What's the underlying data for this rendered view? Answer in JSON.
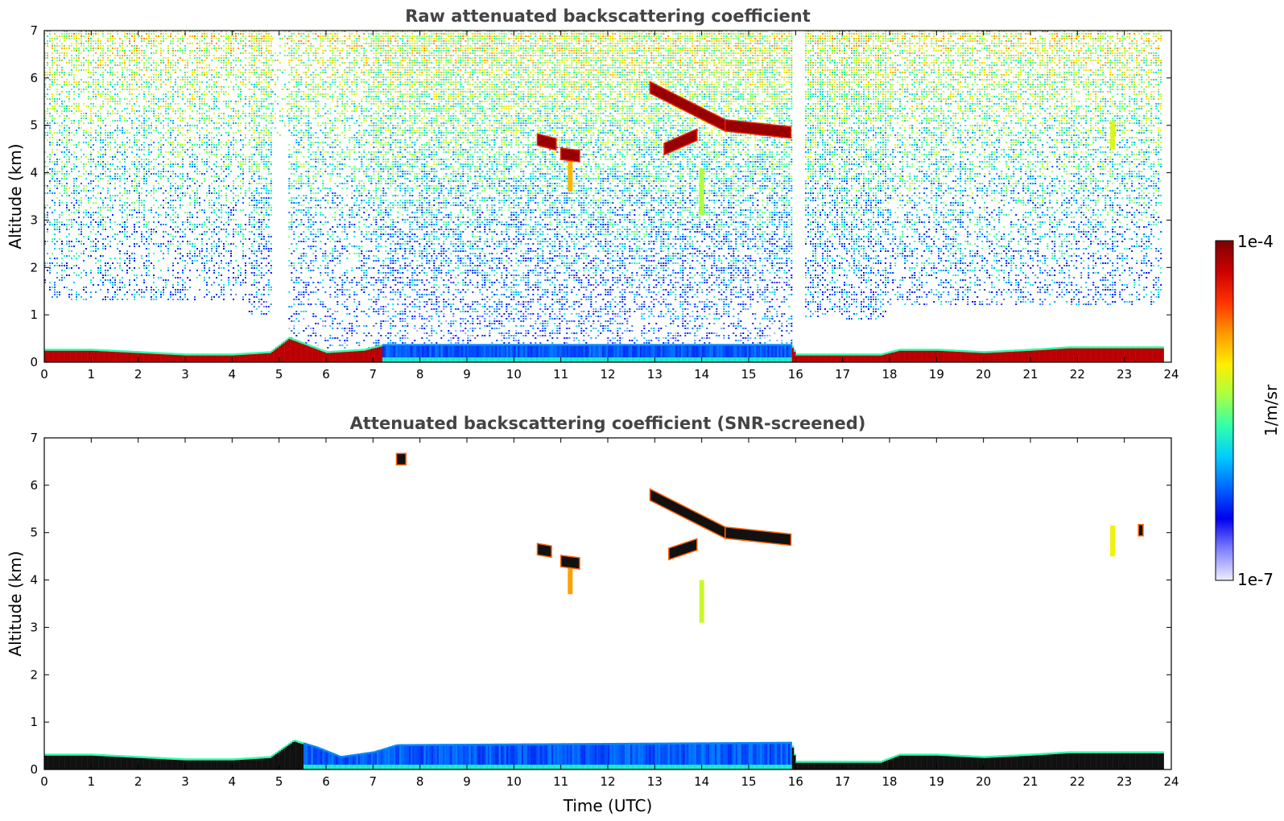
{
  "chart_data": [
    {
      "type": "heatmap",
      "title": "Raw attenuated backscattering coefficient",
      "xlabel": "",
      "ylabel": "Altitude (km)",
      "xlim": [
        0,
        24
      ],
      "ylim": [
        0,
        7
      ],
      "xticks": [
        "0",
        "1",
        "2",
        "3",
        "4",
        "5",
        "6",
        "7",
        "8",
        "9",
        "10",
        "11",
        "12",
        "13",
        "14",
        "15",
        "16",
        "17",
        "18",
        "19",
        "20",
        "21",
        "22",
        "23",
        "24"
      ],
      "yticks": [
        "0",
        "1",
        "2",
        "3",
        "4",
        "5",
        "6",
        "7"
      ],
      "colorscale": "jet, logarithmic",
      "noise_regions": [
        {
          "t0": 0,
          "t1": 4.3,
          "hmin": 1.3,
          "density": 0.55
        },
        {
          "t0": 4.35,
          "t1": 4.85,
          "hmin": 1.0,
          "density": 0.75
        },
        {
          "t0": 4.85,
          "t1": 5.2,
          "hmin": 4.8,
          "density": 0.25
        },
        {
          "t0": 5.2,
          "t1": 7.0,
          "hmin": 0.3,
          "density": 0.55
        },
        {
          "t0": 7.0,
          "t1": 15.9,
          "hmin": 0.3,
          "density": 0.8
        },
        {
          "t0": 16.2,
          "t1": 17.9,
          "hmin": 0.9,
          "density": 0.8
        },
        {
          "t0": 17.9,
          "t1": 23.8,
          "hmin": 1.2,
          "density": 0.6
        }
      ],
      "boundary_layer": [
        {
          "t": 0,
          "h": 0.25
        },
        {
          "t": 1,
          "h": 0.25
        },
        {
          "t": 2,
          "h": 0.2
        },
        {
          "t": 3,
          "h": 0.15
        },
        {
          "t": 4,
          "h": 0.15
        },
        {
          "t": 4.8,
          "h": 0.2
        },
        {
          "t": 5.2,
          "h": 0.5
        },
        {
          "t": 5.6,
          "h": 0.35
        },
        {
          "t": 6,
          "h": 0.2
        },
        {
          "t": 6.8,
          "h": 0.25
        },
        {
          "t": 7.2,
          "h": 0.35
        },
        {
          "t": 15.9,
          "h": 0.35
        },
        {
          "t": 16,
          "h": 0.15
        },
        {
          "t": 17.8,
          "h": 0.15
        },
        {
          "t": 18.2,
          "h": 0.25
        },
        {
          "t": 19,
          "h": 0.25
        },
        {
          "t": 20,
          "h": 0.2
        },
        {
          "t": 21,
          "h": 0.25
        },
        {
          "t": 21.8,
          "h": 0.3
        },
        {
          "t": 22.5,
          "h": 0.3
        },
        {
          "t": 23.8,
          "h": 0.3
        }
      ],
      "cloud_features": [
        {
          "t0": 10.5,
          "t1": 10.9,
          "h0": 4.7,
          "h1": 4.6
        },
        {
          "t0": 11.0,
          "t1": 11.4,
          "h0": 4.4,
          "h1": 4.35
        },
        {
          "t0": 12.9,
          "t1": 14.5,
          "h0": 5.8,
          "h1": 5.0
        },
        {
          "t0": 14.5,
          "t1": 15.9,
          "h0": 5.0,
          "h1": 4.85
        },
        {
          "t0": 13.2,
          "t1": 13.9,
          "h0": 4.5,
          "h1": 4.8
        }
      ],
      "precip_streaks": [
        {
          "t": 11.2,
          "h0": 4.3,
          "h1": 3.6,
          "level": 0.7
        },
        {
          "t": 14.0,
          "h0": 4.1,
          "h1": 3.1,
          "level": 0.55
        },
        {
          "t": 22.75,
          "h0": 5.1,
          "h1": 4.5,
          "level": 0.6
        }
      ]
    },
    {
      "type": "heatmap",
      "title": "Attenuated backscattering coefficient (SNR-screened)",
      "xlabel": "Time (UTC)",
      "ylabel": "Altitude (km)",
      "xlim": [
        0,
        24
      ],
      "ylim": [
        0,
        7
      ],
      "xticks": [
        "0",
        "1",
        "2",
        "3",
        "4",
        "5",
        "6",
        "7",
        "8",
        "9",
        "10",
        "11",
        "12",
        "13",
        "14",
        "15",
        "16",
        "17",
        "18",
        "19",
        "20",
        "21",
        "22",
        "23",
        "24"
      ],
      "yticks": [
        "0",
        "1",
        "2",
        "3",
        "4",
        "5",
        "6",
        "7"
      ],
      "colorscale": "jet, logarithmic",
      "boundary_layer": [
        {
          "t": 0,
          "h": 0.3
        },
        {
          "t": 1,
          "h": 0.3
        },
        {
          "t": 2,
          "h": 0.25
        },
        {
          "t": 3,
          "h": 0.2
        },
        {
          "t": 4,
          "h": 0.2
        },
        {
          "t": 4.8,
          "h": 0.25
        },
        {
          "t": 5.3,
          "h": 0.6
        },
        {
          "t": 5.8,
          "h": 0.45
        },
        {
          "t": 6.3,
          "h": 0.25
        },
        {
          "t": 7.0,
          "h": 0.35
        },
        {
          "t": 7.5,
          "h": 0.5
        },
        {
          "t": 15.9,
          "h": 0.55
        },
        {
          "t": 16,
          "h": 0.15
        },
        {
          "t": 17.8,
          "h": 0.15
        },
        {
          "t": 18.2,
          "h": 0.3
        },
        {
          "t": 19,
          "h": 0.3
        },
        {
          "t": 20,
          "h": 0.25
        },
        {
          "t": 21,
          "h": 0.3
        },
        {
          "t": 21.8,
          "h": 0.35
        },
        {
          "t": 23.8,
          "h": 0.35
        }
      ],
      "cloud_features": [
        {
          "t0": 10.5,
          "t1": 10.8,
          "h0": 4.65,
          "h1": 4.6
        },
        {
          "t0": 11.0,
          "t1": 11.4,
          "h0": 4.4,
          "h1": 4.35
        },
        {
          "t0": 12.9,
          "t1": 14.5,
          "h0": 5.8,
          "h1": 5.0
        },
        {
          "t0": 14.5,
          "t1": 15.9,
          "h0": 5.0,
          "h1": 4.85
        },
        {
          "t0": 13.3,
          "t1": 13.9,
          "h0": 4.55,
          "h1": 4.75
        },
        {
          "t0": 7.5,
          "t1": 7.7,
          "h0": 6.55,
          "h1": 6.55
        },
        {
          "t0": 23.3,
          "t1": 23.4,
          "h0": 5.05,
          "h1": 5.05
        }
      ],
      "precip_streaks": [
        {
          "t": 11.2,
          "h0": 4.3,
          "h1": 3.7,
          "level": 0.72
        },
        {
          "t": 14.0,
          "h0": 4.0,
          "h1": 3.1,
          "level": 0.58
        },
        {
          "t": 22.75,
          "h0": 5.15,
          "h1": 4.5,
          "level": 0.62
        }
      ]
    }
  ],
  "colorbar": {
    "label": "1/m/sr",
    "max_label": "1e-4",
    "min_label": "1e-7",
    "colors": [
      "#7f0000",
      "#cc0000",
      "#ff3300",
      "#ff9900",
      "#ffee00",
      "#aaff44",
      "#33ffaa",
      "#00ccff",
      "#0066ff",
      "#0000ee",
      "#8080ff",
      "#eeeeff"
    ]
  }
}
